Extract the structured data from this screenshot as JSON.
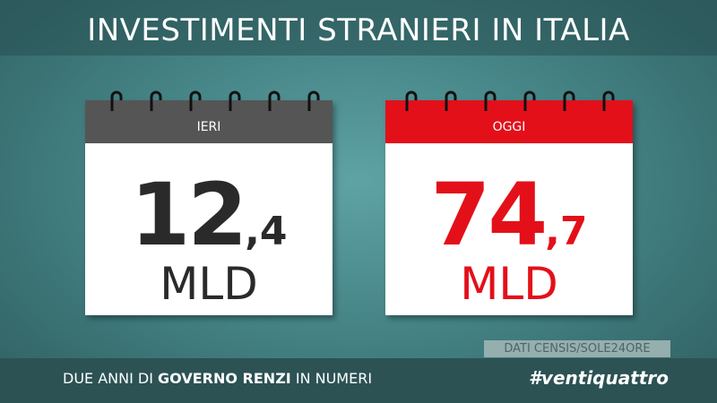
{
  "header": {
    "title": "INVESTIMENTI STRANIERI IN ITALIA"
  },
  "calendars": [
    {
      "label": "IERI",
      "whole": "12",
      "fraction": ",4",
      "unit": "MLD"
    },
    {
      "label": "OGGI",
      "whole": "74",
      "fraction": ",7",
      "unit": "MLD"
    }
  ],
  "source": "DATI CENSIS/SOLE24ORE",
  "footer": {
    "prefix": "DUE ANNI DI",
    "highlight": "GOVERNO RENZI",
    "suffix": "IN NUMERI",
    "hashtag": "#ventiquattro"
  }
}
